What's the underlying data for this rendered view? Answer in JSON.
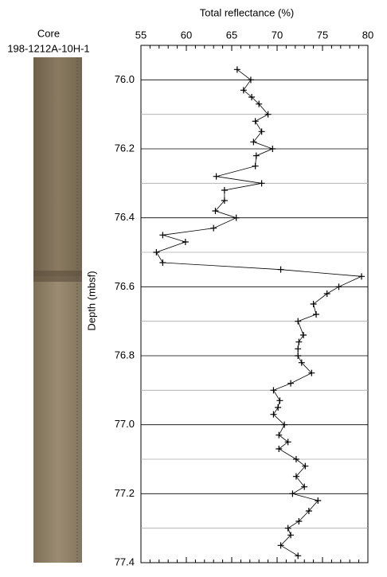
{
  "core_label": "Core",
  "core_id": "198-1212A-10H-1",
  "chart_data": {
    "type": "line",
    "orientation": "vertical",
    "title": "Total reflectance (%)",
    "y_label": "Depth (mbsf)",
    "color": "#000000",
    "y_inverted": true,
    "x": [
      75.97,
      76.0,
      76.03,
      76.05,
      76.07,
      76.1,
      76.12,
      76.15,
      76.18,
      76.2,
      76.22,
      76.25,
      76.28,
      76.3,
      76.32,
      76.35,
      76.38,
      76.4,
      76.43,
      76.45,
      76.47,
      76.5,
      76.53,
      76.55,
      76.57,
      76.6,
      76.62,
      76.65,
      76.68,
      76.7,
      76.74,
      76.76,
      76.78,
      76.8,
      76.82,
      76.85,
      76.88,
      76.9,
      76.93,
      76.95,
      76.97,
      77.0,
      77.03,
      77.05,
      77.07,
      77.1,
      77.12,
      77.15,
      77.18,
      77.2,
      77.22,
      77.25,
      77.28,
      77.3,
      77.32,
      77.35,
      77.38
    ],
    "values": [
      65.6,
      67.1,
      66.3,
      67.2,
      68.0,
      69.0,
      67.6,
      68.3,
      67.4,
      69.5,
      67.7,
      67.6,
      63.3,
      68.3,
      64.2,
      64.2,
      63.2,
      65.5,
      63.0,
      57.4,
      59.9,
      56.7,
      57.4,
      70.4,
      79.3,
      76.8,
      75.5,
      74.0,
      74.3,
      72.3,
      72.9,
      72.4,
      72.3,
      72.3,
      72.7,
      73.8,
      71.5,
      69.6,
      70.3,
      70.1,
      69.6,
      70.8,
      70.2,
      71.2,
      70.2,
      72.1,
      73.1,
      72.1,
      73.0,
      71.7,
      74.5,
      73.5,
      72.4,
      71.2,
      71.5,
      70.4,
      72.3
    ],
    "xlim": [
      55,
      80
    ],
    "xticks": [
      55,
      60,
      65,
      70,
      75,
      80
    ],
    "xminorticks": [
      56,
      57,
      58,
      59,
      61,
      62,
      63,
      64,
      66,
      67,
      68,
      69,
      71,
      72,
      73,
      74,
      76,
      77,
      78,
      79
    ],
    "ylim": [
      75.9,
      77.4
    ],
    "yticks": [
      {
        "value": 76,
        "label": "76.0"
      },
      76.2,
      76.4,
      76.6,
      76.8,
      {
        "value": 77,
        "label": "77.0"
      },
      77.2,
      77.4
    ],
    "yminorticks": [
      76.1,
      76.3,
      76.5,
      76.7,
      76.9,
      77.1,
      77.3
    ],
    "grid": true
  }
}
